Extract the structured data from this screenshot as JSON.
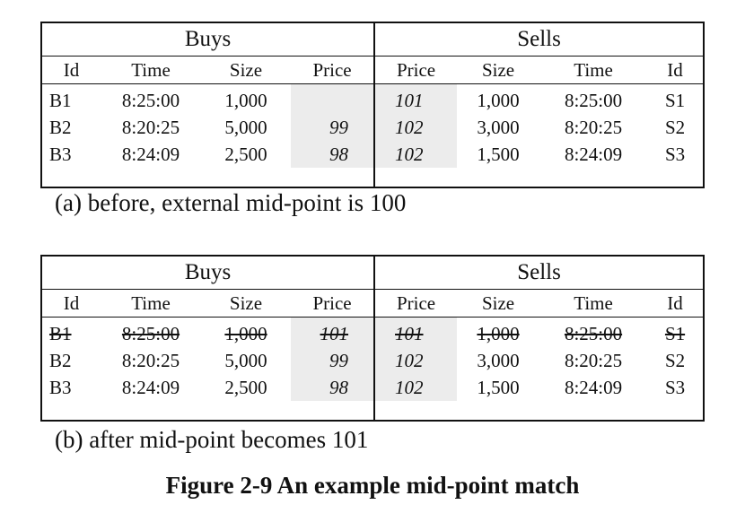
{
  "headers": {
    "buys": "Buys",
    "sells": "Sells",
    "buy_columns": [
      "Id",
      "Time",
      "Size",
      "Price"
    ],
    "sell_columns": [
      "Price",
      "Size",
      "Time",
      "Id"
    ]
  },
  "table_a": {
    "buys": [
      {
        "id": "B1",
        "time": "8:25:00",
        "size": "1,000",
        "price": ""
      },
      {
        "id": "B2",
        "time": "8:20:25",
        "size": "5,000",
        "price": "99"
      },
      {
        "id": "B3",
        "time": "8:24:09",
        "size": "2,500",
        "price": "98"
      }
    ],
    "sells": [
      {
        "price": "101",
        "size": "1,000",
        "time": "8:25:00",
        "id": "S1"
      },
      {
        "price": "102",
        "size": "3,000",
        "time": "8:20:25",
        "id": "S2"
      },
      {
        "price": "102",
        "size": "1,500",
        "time": "8:24:09",
        "id": "S3"
      }
    ],
    "caption": "(a) before, external mid-point is 100"
  },
  "table_b": {
    "buys": [
      {
        "id": "B1",
        "time": "8:25:00",
        "size": "1,000",
        "price": "101",
        "struck": true
      },
      {
        "id": "B2",
        "time": "8:20:25",
        "size": "5,000",
        "price": "99"
      },
      {
        "id": "B3",
        "time": "8:24:09",
        "size": "2,500",
        "price": "98"
      }
    ],
    "sells": [
      {
        "price": "101",
        "size": "1,000",
        "time": "8:25:00",
        "id": "S1",
        "struck": true
      },
      {
        "price": "102",
        "size": "3,000",
        "time": "8:20:25",
        "id": "S2"
      },
      {
        "price": "102",
        "size": "1,500",
        "time": "8:24:09",
        "id": "S3"
      }
    ],
    "caption": "(b) after mid-point becomes 101"
  },
  "figure_title": "Figure 2-9 An example mid-point match"
}
